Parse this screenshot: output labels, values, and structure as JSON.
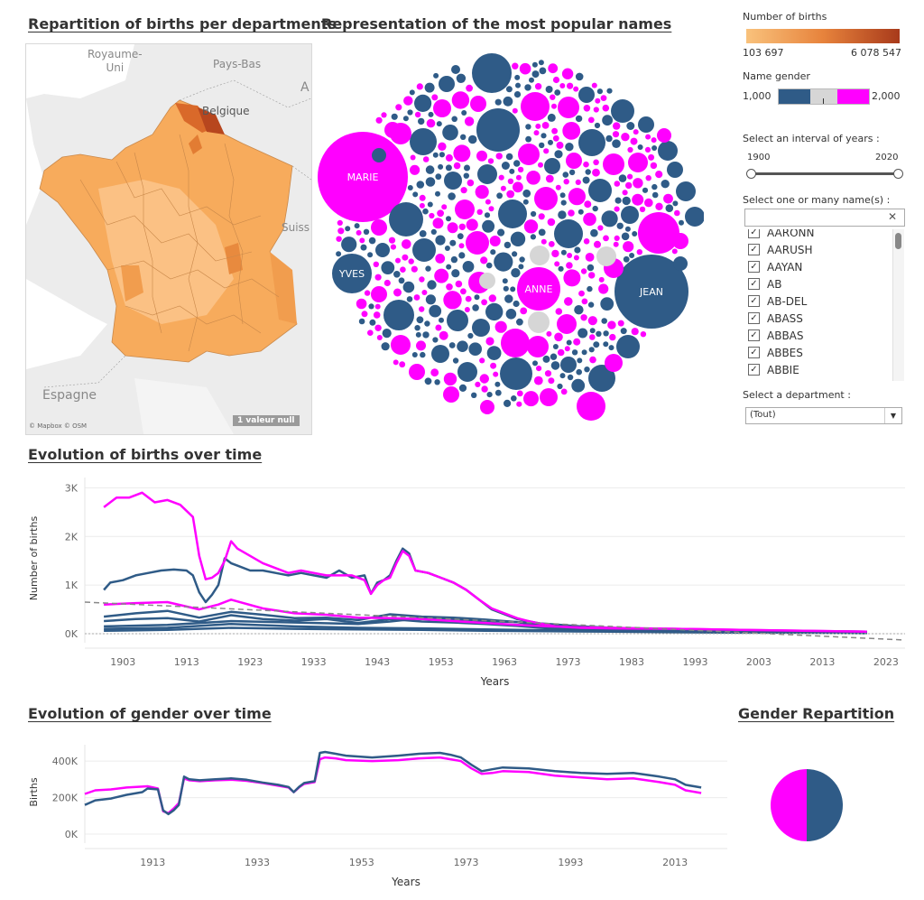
{
  "titles": {
    "map": "Repartition of births per departments",
    "bubbles": "Representation of the most popular names",
    "births": "Evolution of births over time",
    "gender": "Evolution of gender over time",
    "pie": "Gender Repartition"
  },
  "map": {
    "labels": {
      "uk": "Royaume-\nUni",
      "nl": "Pays-Bas",
      "be": "Belgique",
      "es": "Espagne",
      "ch": "Suiss",
      "a": "A"
    },
    "attribution": "© Mapbox © OSM",
    "null_badge": "1 valeur null"
  },
  "bubbles": {
    "labeled": [
      {
        "name": "MARIE",
        "gender": "female"
      },
      {
        "name": "JEAN",
        "gender": "male"
      },
      {
        "name": "ANNE",
        "gender": "female"
      },
      {
        "name": "YVES",
        "gender": "male"
      }
    ]
  },
  "legend": {
    "births_title": "Number of births",
    "births_min": "103 697",
    "births_max": "6 078 547",
    "gender_title": "Name gender",
    "gender_min": "1,000",
    "gender_max": "2,000",
    "years_title": "Select an interval of years :",
    "year_min": "1900",
    "year_max": "2020",
    "names_title": "Select one or many name(s) :",
    "search_placeholder": "",
    "names": [
      "AARONN",
      "AARUSH",
      "AAYAN",
      "AB",
      "AB-DEL",
      "ABASS",
      "ABBAS",
      "ABBES",
      "ABBIE"
    ],
    "dept_title": "Select a department :",
    "dept_value": "(Tout)"
  },
  "colors": {
    "male": "#2f5b87",
    "female": "#ff00ff",
    "neutral": "#d6d6d6",
    "births_low": "#f9c27c",
    "births_high": "#a83a1b"
  },
  "chart_data": [
    {
      "type": "line",
      "title": "Evolution of births over time",
      "xlabel": "Years",
      "ylabel": "Number of births",
      "xlim": [
        1897,
        2026
      ],
      "ylim": [
        0,
        3100
      ],
      "xticks": [
        "1903",
        "1913",
        "1923",
        "1933",
        "1943",
        "1953",
        "1963",
        "1973",
        "1983",
        "1993",
        "2003",
        "2013",
        "2023"
      ],
      "yticks": [
        "0K",
        "1K",
        "2K",
        "3K"
      ],
      "series": [
        {
          "color": "#ff00ff",
          "x": [
            1900,
            1902,
            1904,
            1906,
            1908,
            1910,
            1912,
            1914,
            1915,
            1916,
            1917,
            1918,
            1919,
            1920,
            1921,
            1923,
            1925,
            1927,
            1929,
            1931,
            1933,
            1935,
            1937,
            1939,
            1941,
            1942,
            1943,
            1944,
            1945,
            1946,
            1947,
            1948,
            1949,
            1951,
            1953,
            1955,
            1957,
            1959,
            1961,
            1963,
            1965,
            1967,
            1969,
            1971,
            1975,
            1980,
            1990,
            2000,
            2010,
            2020
          ],
          "y": [
            2600,
            2800,
            2800,
            2900,
            2700,
            2750,
            2650,
            2400,
            1600,
            1120,
            1150,
            1250,
            1500,
            1900,
            1750,
            1600,
            1450,
            1350,
            1250,
            1300,
            1250,
            1200,
            1200,
            1200,
            1100,
            820,
            1000,
            1100,
            1150,
            1450,
            1700,
            1600,
            1300,
            1250,
            1150,
            1050,
            900,
            700,
            520,
            420,
            320,
            250,
            200,
            150,
            120,
            110,
            100,
            80,
            60,
            40
          ]
        },
        {
          "color": "#2f5b87",
          "x": [
            1900,
            1901,
            1903,
            1905,
            1907,
            1909,
            1911,
            1913,
            1914,
            1915,
            1916,
            1917,
            1918,
            1919,
            1920,
            1921,
            1923,
            1925,
            1927,
            1929,
            1931,
            1933,
            1935,
            1937,
            1939,
            1941,
            1942,
            1943,
            1944,
            1945,
            1946,
            1947,
            1948,
            1949,
            1951,
            1953,
            1955,
            1957,
            1959,
            1961,
            1963,
            1965,
            1967,
            1969,
            1971,
            1975,
            1980,
            1990,
            2000,
            2010,
            2020
          ],
          "y": [
            900,
            1050,
            1100,
            1200,
            1250,
            1300,
            1320,
            1300,
            1200,
            850,
            650,
            800,
            1000,
            1550,
            1450,
            1400,
            1300,
            1300,
            1250,
            1200,
            1250,
            1200,
            1150,
            1300,
            1150,
            1200,
            820,
            1050,
            1100,
            1200,
            1500,
            1750,
            1650,
            1300,
            1250,
            1150,
            1050,
            900,
            700,
            500,
            400,
            300,
            250,
            200,
            150,
            120,
            100,
            80,
            60,
            50,
            40
          ]
        },
        {
          "color": "#ff00ff",
          "x": [
            1900,
            1905,
            1910,
            1915,
            1918,
            1920,
            1925,
            1930,
            1935,
            1940,
            1945,
            1950,
            1955,
            1960,
            1965,
            1970,
            1975,
            1980,
            1990,
            2000,
            2010,
            2020
          ],
          "y": [
            600,
            630,
            650,
            500,
            600,
            700,
            520,
            420,
            390,
            330,
            320,
            300,
            260,
            220,
            180,
            150,
            130,
            120,
            100,
            80,
            60,
            40
          ]
        },
        {
          "color": "#2f5b87",
          "x": [
            1900,
            1905,
            1910,
            1915,
            1920,
            1925,
            1930,
            1935,
            1940,
            1945,
            1950,
            1955,
            1960,
            1965,
            1970,
            1975,
            1980,
            1990,
            2000,
            2010,
            2020
          ],
          "y": [
            350,
            420,
            470,
            330,
            450,
            390,
            320,
            330,
            280,
            400,
            350,
            330,
            290,
            240,
            140,
            100,
            80,
            60,
            50,
            40,
            30
          ]
        },
        {
          "color": "#2f5b87",
          "x": [
            1900,
            1905,
            1910,
            1915,
            1920,
            1925,
            1930,
            1935,
            1940,
            1945,
            1950,
            1955,
            1960,
            1965,
            1970,
            1975,
            1980,
            1990,
            2000,
            2010,
            2020
          ],
          "y": [
            260,
            300,
            320,
            250,
            380,
            300,
            270,
            300,
            220,
            300,
            250,
            230,
            200,
            160,
            110,
            80,
            60,
            50,
            40,
            30,
            20
          ]
        },
        {
          "color": "#2f5b87",
          "x": [
            1900,
            1910,
            1920,
            1930,
            1940,
            1945,
            1950,
            1955,
            1960,
            1965,
            1970,
            1975,
            1980,
            1990,
            2000,
            2010,
            2020
          ],
          "y": [
            150,
            180,
            260,
            230,
            200,
            250,
            320,
            300,
            260,
            240,
            200,
            150,
            120,
            90,
            70,
            50,
            40
          ]
        },
        {
          "color": "#2f5b87",
          "x": [
            1900,
            1910,
            1920,
            1930,
            1940,
            1950,
            1960,
            1970,
            1980,
            1990,
            2000,
            2010,
            2020
          ],
          "y": [
            100,
            120,
            200,
            150,
            120,
            110,
            90,
            70,
            50,
            40,
            30,
            20,
            20
          ]
        },
        {
          "color": "#2f5b87",
          "x": [
            1900,
            1910,
            1920,
            1930,
            1940,
            1950,
            1960,
            1970,
            1980,
            1990,
            2000,
            2010,
            2020
          ],
          "y": [
            60,
            80,
            120,
            100,
            90,
            80,
            60,
            50,
            40,
            30,
            20,
            20,
            10
          ]
        }
      ],
      "trendline": {
        "color": "#888888",
        "x": [
          1897,
          2026
        ],
        "y": [
          650,
          -130
        ]
      }
    },
    {
      "type": "line",
      "title": "Evolution of gender over time",
      "xlabel": "Years",
      "ylabel": "Births",
      "xlim": [
        1900,
        2023
      ],
      "ylim": [
        0,
        460000
      ],
      "xticks": [
        "1913",
        "1933",
        "1953",
        "1973",
        "1993",
        "2013"
      ],
      "yticks": [
        "0K",
        "200K",
        "400K"
      ],
      "series": [
        {
          "color": "#ff00ff",
          "x": [
            1900,
            1902,
            1905,
            1908,
            1911,
            1912,
            1914,
            1915,
            1916,
            1917,
            1918,
            1919,
            1920,
            1922,
            1925,
            1928,
            1931,
            1934,
            1937,
            1939,
            1940,
            1941,
            1942,
            1944,
            1945,
            1946,
            1948,
            1950,
            1955,
            1960,
            1964,
            1968,
            1970,
            1972,
            1974,
            1976,
            1978,
            1980,
            1985,
            1990,
            1995,
            2000,
            2005,
            2010,
            2013,
            2015,
            2018
          ],
          "y": [
            220000,
            240000,
            245000,
            255000,
            260000,
            262000,
            250000,
            125000,
            115000,
            140000,
            170000,
            305000,
            295000,
            290000,
            295000,
            298000,
            292000,
            280000,
            265000,
            255000,
            230000,
            255000,
            275000,
            285000,
            410000,
            420000,
            415000,
            405000,
            400000,
            405000,
            415000,
            420000,
            410000,
            400000,
            360000,
            330000,
            335000,
            345000,
            340000,
            320000,
            310000,
            300000,
            305000,
            285000,
            270000,
            240000,
            225000
          ]
        },
        {
          "color": "#2f5b87",
          "x": [
            1900,
            1902,
            1905,
            1908,
            1911,
            1912,
            1914,
            1915,
            1916,
            1917,
            1918,
            1919,
            1920,
            1922,
            1925,
            1928,
            1931,
            1934,
            1937,
            1939,
            1940,
            1941,
            1942,
            1944,
            1945,
            1946,
            1948,
            1950,
            1955,
            1960,
            1964,
            1968,
            1970,
            1972,
            1974,
            1976,
            1978,
            1980,
            1985,
            1990,
            1995,
            2000,
            2005,
            2010,
            2013,
            2015,
            2018
          ],
          "y": [
            160000,
            185000,
            195000,
            215000,
            230000,
            250000,
            245000,
            130000,
            110000,
            130000,
            160000,
            315000,
            300000,
            295000,
            300000,
            305000,
            298000,
            283000,
            270000,
            258000,
            230000,
            258000,
            280000,
            290000,
            445000,
            450000,
            440000,
            430000,
            420000,
            430000,
            440000,
            445000,
            435000,
            420000,
            380000,
            345000,
            355000,
            365000,
            360000,
            345000,
            335000,
            330000,
            335000,
            315000,
            300000,
            270000,
            255000
          ]
        }
      ]
    },
    {
      "type": "pie",
      "title": "Gender Repartition",
      "slices": [
        {
          "label": "female",
          "color": "#ff00ff",
          "value": 0.5
        },
        {
          "label": "male",
          "color": "#2f5b87",
          "value": 0.5
        }
      ]
    }
  ]
}
